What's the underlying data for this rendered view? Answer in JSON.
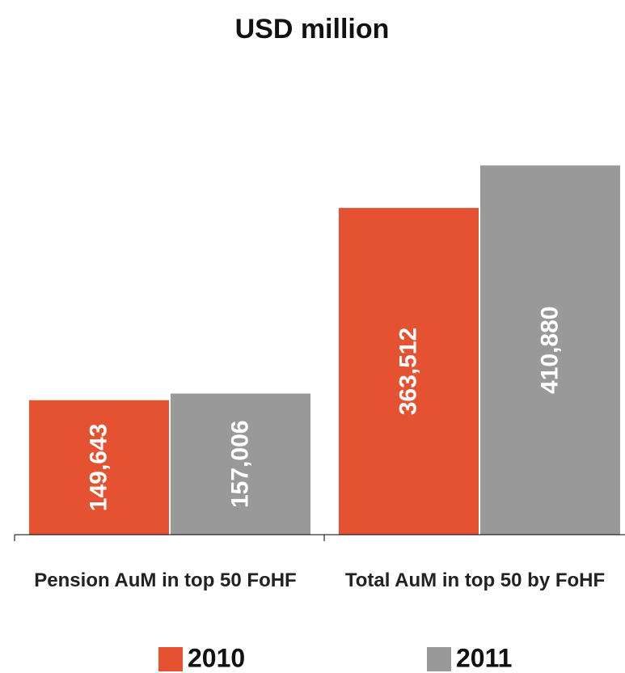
{
  "chart_data": {
    "type": "bar",
    "title": "USD million",
    "categories": [
      "Pension AuM in top 50 FoHF",
      "Total AuM in top 50 by FoHF"
    ],
    "series": [
      {
        "name": "2010",
        "color": "#e55232",
        "values": [
          149643,
          363512
        ],
        "value_labels": [
          "149,643",
          "363,512"
        ]
      },
      {
        "name": "2011",
        "color": "#999999",
        "values": [
          157006,
          410880
        ],
        "value_labels": [
          "157,006",
          "410,880"
        ]
      }
    ],
    "ylim": [
      0,
      450000
    ],
    "legend": "bottom"
  }
}
